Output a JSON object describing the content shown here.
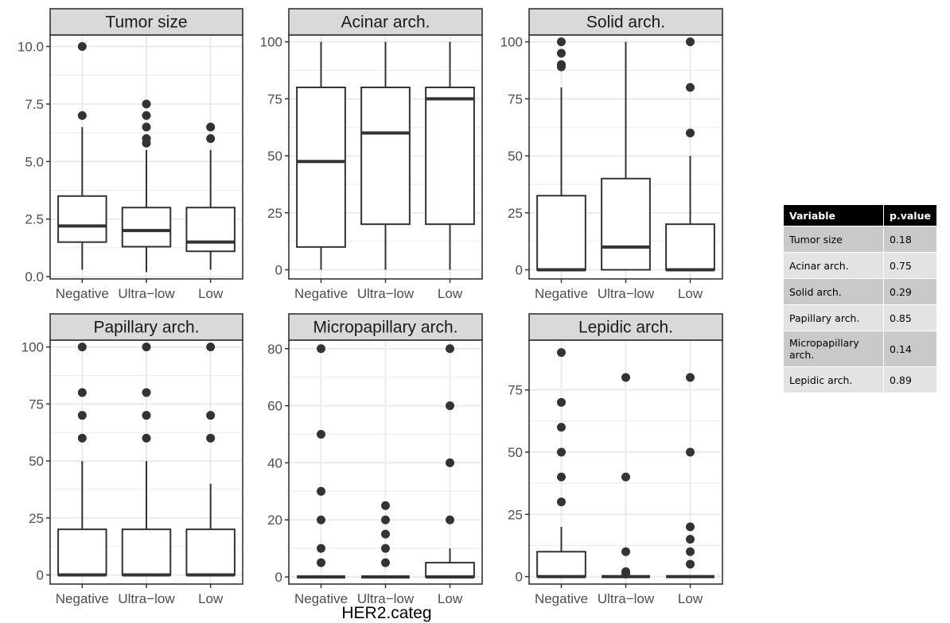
{
  "chart_data": {
    "type": "boxplot",
    "xlabel": "HER2.categ",
    "categories": [
      "Negative",
      "Ultra−low",
      "Low"
    ],
    "grid": true,
    "facets": [
      {
        "title": "Tumor size",
        "ylim": [
          -0.1,
          10.5
        ],
        "yticks": [
          0,
          2.5,
          5,
          7.5,
          10
        ],
        "ytick_labels": [
          "0.0",
          "2.5",
          "5.0",
          "7.5",
          "10.0"
        ],
        "boxes": [
          {
            "category": "Negative",
            "whisker_low": 0.3,
            "q1": 1.5,
            "median": 2.2,
            "q3": 3.5,
            "whisker_high": 6.5,
            "outliers": [
              7,
              10
            ]
          },
          {
            "category": "Ultra−low",
            "whisker_low": 0.2,
            "q1": 1.3,
            "median": 2.0,
            "q3": 3.0,
            "whisker_high": 5.5,
            "outliers": [
              5.8,
              6.0,
              6.5,
              7.0,
              7.5
            ]
          },
          {
            "category": "Low",
            "whisker_low": 0.3,
            "q1": 1.1,
            "median": 1.5,
            "q3": 3.0,
            "whisker_high": 5.5,
            "outliers": [
              6.0,
              6.5
            ]
          }
        ]
      },
      {
        "title": "Acinar arch.",
        "ylim": [
          -4,
          103
        ],
        "yticks": [
          0,
          25,
          50,
          75,
          100
        ],
        "ytick_labels": [
          "0",
          "25",
          "50",
          "75",
          "100"
        ],
        "boxes": [
          {
            "category": "Negative",
            "whisker_low": 0,
            "q1": 10,
            "median": 47.5,
            "q3": 80,
            "whisker_high": 100,
            "outliers": []
          },
          {
            "category": "Ultra−low",
            "whisker_low": 0,
            "q1": 20,
            "median": 60,
            "q3": 80,
            "whisker_high": 100,
            "outliers": []
          },
          {
            "category": "Low",
            "whisker_low": 0,
            "q1": 20,
            "median": 75,
            "q3": 80,
            "whisker_high": 100,
            "outliers": []
          }
        ]
      },
      {
        "title": "Solid arch.",
        "ylim": [
          -4,
          103
        ],
        "yticks": [
          0,
          25,
          50,
          75,
          100
        ],
        "ytick_labels": [
          "0",
          "25",
          "50",
          "75",
          "100"
        ],
        "boxes": [
          {
            "category": "Negative",
            "whisker_low": 0,
            "q1": 0,
            "median": 0,
            "q3": 32.5,
            "whisker_high": 80,
            "outliers": [
              89,
              90,
              95,
              100
            ]
          },
          {
            "category": "Ultra−low",
            "whisker_low": 0,
            "q1": 0,
            "median": 10,
            "q3": 40,
            "whisker_high": 100,
            "outliers": []
          },
          {
            "category": "Low",
            "whisker_low": 0,
            "q1": 0,
            "median": 0,
            "q3": 20,
            "whisker_high": 50,
            "outliers": [
              60,
              80,
              100
            ]
          }
        ]
      },
      {
        "title": "Papillary arch.",
        "ylim": [
          -4,
          103
        ],
        "yticks": [
          0,
          25,
          50,
          75,
          100
        ],
        "ytick_labels": [
          "0",
          "25",
          "50",
          "75",
          "100"
        ],
        "boxes": [
          {
            "category": "Negative",
            "whisker_low": 0,
            "q1": 0,
            "median": 0,
            "q3": 20,
            "whisker_high": 50,
            "outliers": [
              60,
              70,
              80,
              100
            ]
          },
          {
            "category": "Ultra−low",
            "whisker_low": 0,
            "q1": 0,
            "median": 0,
            "q3": 20,
            "whisker_high": 50,
            "outliers": [
              60,
              70,
              80,
              100
            ]
          },
          {
            "category": "Low",
            "whisker_low": 0,
            "q1": 0,
            "median": 0,
            "q3": 20,
            "whisker_high": 40,
            "outliers": [
              60,
              70,
              100
            ]
          }
        ]
      },
      {
        "title": "Micropapillary arch.",
        "ylim": [
          -2.5,
          83
        ],
        "yticks": [
          0,
          20,
          40,
          60,
          80
        ],
        "ytick_labels": [
          "0",
          "20",
          "40",
          "60",
          "80"
        ],
        "boxes": [
          {
            "category": "Negative",
            "whisker_low": 0,
            "q1": 0,
            "median": 0,
            "q3": 0,
            "whisker_high": 0,
            "outliers": [
              5,
              10,
              20,
              30,
              50,
              80
            ]
          },
          {
            "category": "Ultra−low",
            "whisker_low": 0,
            "q1": 0,
            "median": 0,
            "q3": 0,
            "whisker_high": 0,
            "outliers": [
              5,
              10,
              15,
              20,
              25
            ]
          },
          {
            "category": "Low",
            "whisker_low": 0,
            "q1": 0,
            "median": 0,
            "q3": 5,
            "whisker_high": 10,
            "outliers": [
              20,
              40,
              60,
              80
            ]
          }
        ]
      },
      {
        "title": "Lepidic arch.",
        "ylim": [
          -3,
          95
        ],
        "yticks": [
          0,
          25,
          50,
          75
        ],
        "ytick_labels": [
          "0",
          "25",
          "50",
          "75"
        ],
        "boxes": [
          {
            "category": "Negative",
            "whisker_low": 0,
            "q1": 0,
            "median": 0,
            "q3": 10,
            "whisker_high": 20,
            "outliers": [
              30,
              40,
              50,
              60,
              70,
              90
            ]
          },
          {
            "category": "Ultra−low",
            "whisker_low": 0,
            "q1": 0,
            "median": 0,
            "q3": 0,
            "whisker_high": 0,
            "outliers": [
              1,
              2,
              10,
              40,
              80
            ]
          },
          {
            "category": "Low",
            "whisker_low": 0,
            "q1": 0,
            "median": 0,
            "q3": 0,
            "whisker_high": 0,
            "outliers": [
              5,
              10,
              15,
              20,
              50,
              80
            ]
          }
        ]
      }
    ]
  },
  "table": {
    "headers": [
      "Variable",
      "p.value"
    ],
    "rows": [
      {
        "variable": "Tumor size",
        "p_value": "0.18"
      },
      {
        "variable": "Acinar arch.",
        "p_value": "0.75"
      },
      {
        "variable": "Solid arch.",
        "p_value": "0.29"
      },
      {
        "variable": "Papillary arch.",
        "p_value": "0.85"
      },
      {
        "variable": "Micropapillary arch.",
        "p_value": "0.14"
      },
      {
        "variable": "Lepidic arch.",
        "p_value": "0.89"
      }
    ]
  },
  "colors": {
    "panel_border": "#333333",
    "grid": "#ebebeb",
    "strip_fill": "#d9d9d9",
    "box_line": "#333333",
    "outlier": "#333333",
    "table_header": "#000000",
    "table_row_dark": "#c9c9c9",
    "table_row_light": "#e3e3e3"
  }
}
